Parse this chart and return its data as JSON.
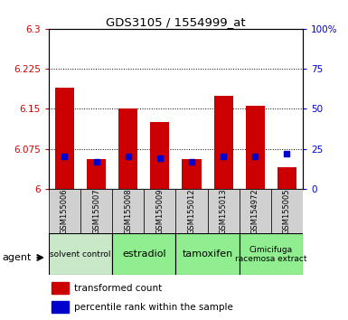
{
  "title": "GDS3105 / 1554999_at",
  "samples": [
    "GSM155006",
    "GSM155007",
    "GSM155008",
    "GSM155009",
    "GSM155012",
    "GSM155013",
    "GSM154972",
    "GSM155005"
  ],
  "red_values": [
    6.19,
    6.055,
    6.15,
    6.125,
    6.055,
    6.175,
    6.155,
    6.04
  ],
  "blue_values": [
    20,
    17,
    20,
    19,
    17,
    20,
    20,
    22
  ],
  "ylim_left": [
    6.0,
    6.3
  ],
  "ylim_right": [
    0,
    100
  ],
  "yticks_left": [
    6.0,
    6.075,
    6.15,
    6.225,
    6.3
  ],
  "ytick_labels_left": [
    "6",
    "6.075",
    "6.15",
    "6.225",
    "6.3"
  ],
  "yticks_right": [
    0,
    25,
    50,
    75,
    100
  ],
  "ytick_labels_right": [
    "0",
    "25",
    "50",
    "75",
    "100%"
  ],
  "group_configs": [
    {
      "label": "solvent control",
      "start": 0,
      "end": 2,
      "color": "#c8e8c8",
      "fontsize": 6.5
    },
    {
      "label": "estradiol",
      "start": 2,
      "end": 4,
      "color": "#90ee90",
      "fontsize": 8
    },
    {
      "label": "tamoxifen",
      "start": 4,
      "end": 6,
      "color": "#90ee90",
      "fontsize": 8
    },
    {
      "label": "Cimicifuga\nracemosa extract",
      "start": 6,
      "end": 8,
      "color": "#90ee90",
      "fontsize": 6.5
    }
  ],
  "bar_color": "#cc0000",
  "bar_base": 6.0,
  "blue_marker_color": "#0000cc",
  "bar_width": 0.6,
  "background_color": "#ffffff",
  "plot_bg_color": "#ffffff",
  "tick_label_color_left": "#cc0000",
  "tick_label_color_right": "#0000cc",
  "agent_label": "agent",
  "sample_box_color": "#d0d0d0"
}
